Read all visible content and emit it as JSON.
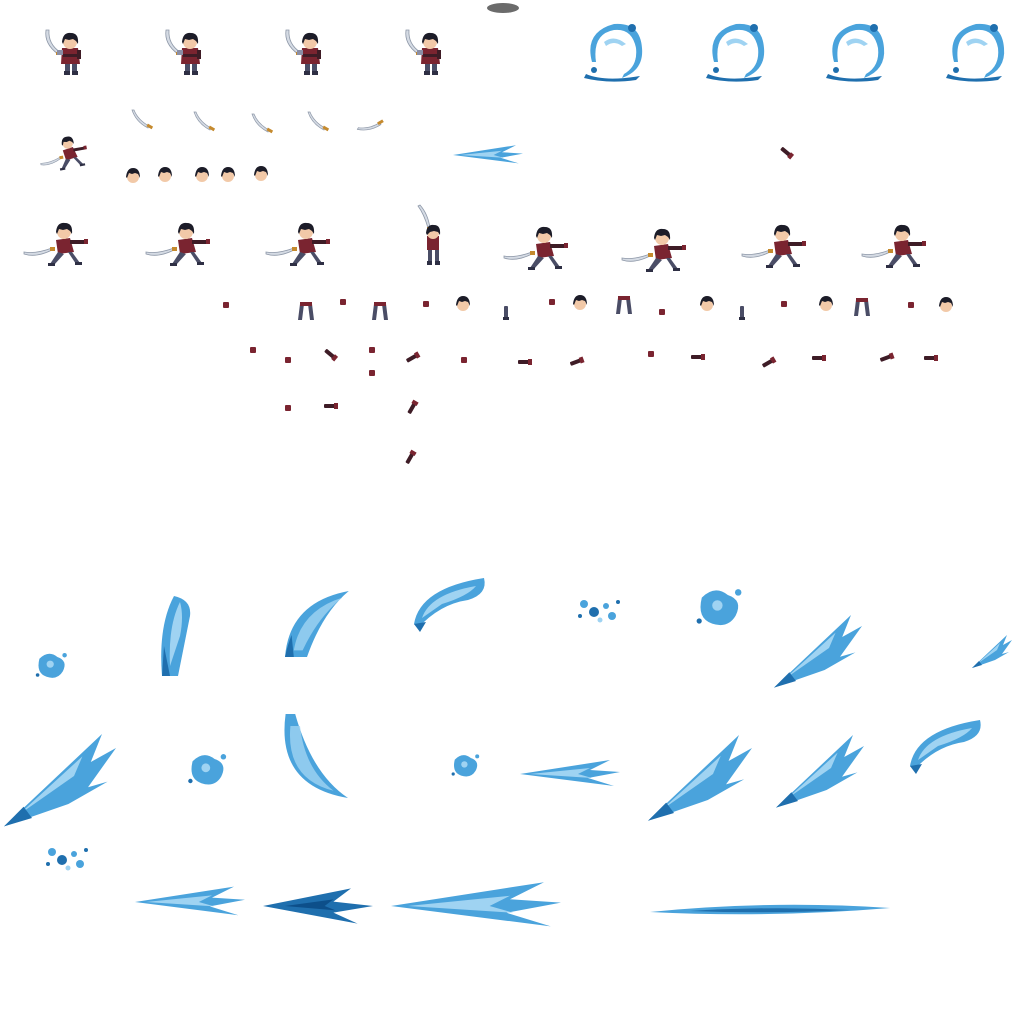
{
  "sheet": {
    "background": "#ffffff",
    "colors": {
      "hair": "#1c1c28",
      "skin": "#f2c9a8",
      "tunic": "#7a2430",
      "tunic_dark": "#3e1c26",
      "armor": "#8a8fa6",
      "pants": "#4a4d66",
      "boot": "#2e2f44",
      "blade": "#d5dbe4",
      "blade_edge": "#8e98a8",
      "hilt": "#c58a2e",
      "water_light": "#9fd3f2",
      "water_mid": "#4aa3dc",
      "water_dark": "#1f6fae",
      "water_deep": "#0d4f8a",
      "shadow": "#6b6b6b"
    },
    "sprite_groups": [
      {
        "name": "hero-idle-frames",
        "icon": "swordsman-icon",
        "frames": 4
      },
      {
        "name": "water-ring-frames",
        "icon": "water-ring-icon",
        "frames": 4
      },
      {
        "name": "saber-parts",
        "icon": "saber-icon",
        "frames": 5
      },
      {
        "name": "head-parts",
        "icon": "head-icon",
        "frames": 5
      },
      {
        "name": "hero-attack-frames",
        "icon": "swordsman-icon",
        "frames": 8
      },
      {
        "name": "limb-parts",
        "icon": "limb-icon",
        "frames": 40
      },
      {
        "name": "water-splash-frames",
        "icon": "water-splash-icon",
        "frames": 25
      }
    ]
  }
}
